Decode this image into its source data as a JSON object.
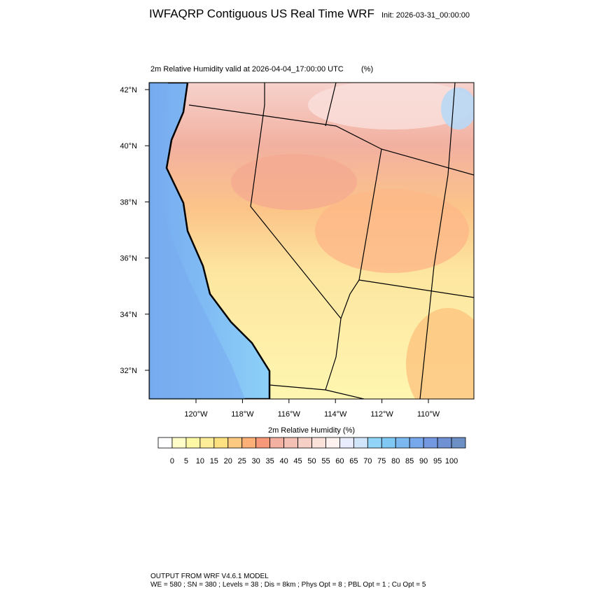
{
  "header": {
    "title": "IWFAQRP Contiguous US Real Time WRF",
    "init": "Init: 2026-03-31_00:00:00"
  },
  "map": {
    "subtitle": "2m Relative Humidity valid at 2026-04-04_17:00:00 UTC",
    "units": "(%)",
    "lat_labels": [
      "42°N",
      "40°N",
      "38°N",
      "36°N",
      "34°N",
      "32°N"
    ],
    "lon_labels": [
      "120°W",
      "118°W",
      "116°W",
      "114°W",
      "112°W",
      "110°W"
    ]
  },
  "colorbar": {
    "title": "2m Relative Humidity  (%)",
    "labels": [
      0,
      5,
      10,
      15,
      20,
      25,
      30,
      35,
      40,
      45,
      50,
      55,
      60,
      65,
      70,
      75,
      80,
      85,
      90,
      95,
      100
    ],
    "colors": [
      "#ffffff",
      "#fffec8",
      "#fdf8a6",
      "#fdec98",
      "#fde080",
      "#fdc880",
      "#fcb078",
      "#f8987a",
      "#f4b0a0",
      "#f4c0b4",
      "#f6d0c6",
      "#fae2da",
      "#fdf2f0",
      "#e8ecfc",
      "#d0e4fa",
      "#90d4f8",
      "#80c8f4",
      "#7cb8f0",
      "#78a8ec",
      "#7498e0",
      "#7090d4",
      "#6c90c4"
    ]
  },
  "footer": {
    "line1": "OUTPUT FROM WRF V4.6.1 MODEL",
    "line2": "WE = 580 ; SN = 380 ; Levels = 38 ; Dis = 8km ; Phys Opt = 8 ; PBL Opt = 1 ; Cu Opt = 5"
  }
}
